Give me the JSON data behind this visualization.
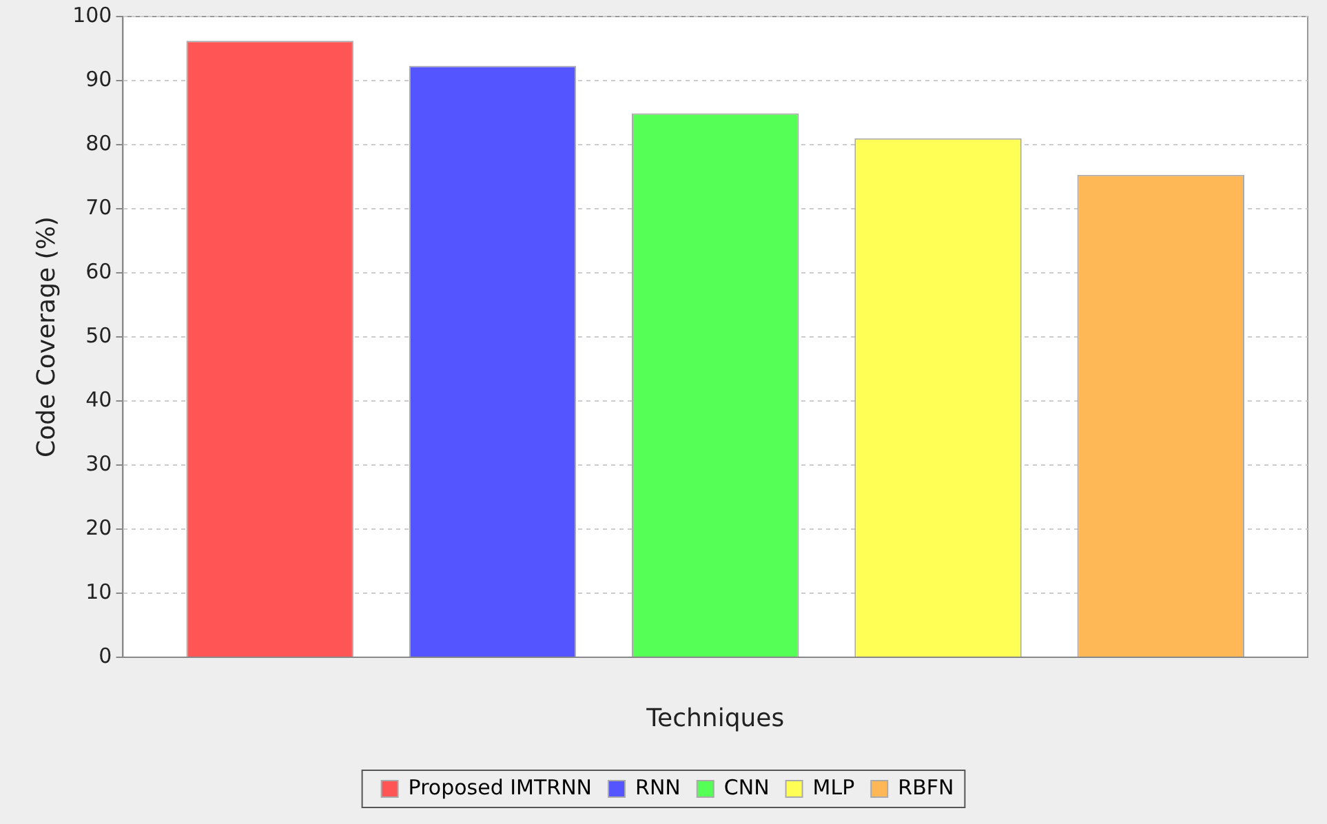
{
  "chart_data": {
    "type": "bar",
    "xlabel": "Techniques",
    "ylabel": "Code Coverage (%)",
    "categories": [
      null
    ],
    "series": [
      {
        "name": "Proposed IMTRNN",
        "color": "#ff5555",
        "values": [
          96.2
        ]
      },
      {
        "name": "RNN",
        "color": "#5555ff",
        "values": [
          92.3
        ]
      },
      {
        "name": "CNN",
        "color": "#55ff55",
        "values": [
          84.9
        ]
      },
      {
        "name": "MLP",
        "color": "#ffff55",
        "values": [
          81.0
        ]
      },
      {
        "name": "RBFN",
        "color": "#ffb855",
        "values": [
          75.3
        ]
      }
    ],
    "ylim": [
      0,
      100
    ],
    "yticks": [
      0,
      10,
      20,
      30,
      40,
      50,
      60,
      70,
      80,
      90,
      100
    ],
    "grid": "y",
    "legend": "bottom"
  }
}
